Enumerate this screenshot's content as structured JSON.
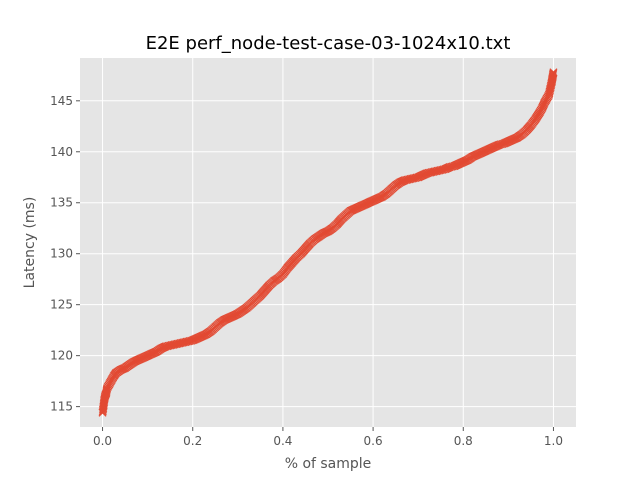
{
  "chart_data": {
    "type": "scatter",
    "title": "E2E perf_node-test-case-03-1024x10.txt",
    "xlabel": "% of sample",
    "ylabel": "Latency (ms)",
    "xlim": [
      -0.05,
      1.05
    ],
    "ylim": [
      113.0,
      149.2
    ],
    "xticks": [
      0.0,
      0.2,
      0.4,
      0.6,
      0.8,
      1.0
    ],
    "xtick_labels": [
      "0.0",
      "0.2",
      "0.4",
      "0.6",
      "0.8",
      "1.0"
    ],
    "yticks": [
      115,
      120,
      125,
      130,
      135,
      140,
      145
    ],
    "ytick_labels": [
      "115",
      "120",
      "125",
      "130",
      "135",
      "140",
      "145"
    ],
    "grid": true,
    "marker": "x",
    "color": "#E24A33",
    "background": "#E5E5E5",
    "series": [
      {
        "x": [
          0.0,
          0.002,
          0.004,
          0.006,
          0.008,
          0.01,
          0.015,
          0.02,
          0.025,
          0.03,
          0.04,
          0.05,
          0.06,
          0.07,
          0.08,
          0.09,
          0.1,
          0.11,
          0.12,
          0.13,
          0.14,
          0.15,
          0.16,
          0.17,
          0.18,
          0.19,
          0.2,
          0.21,
          0.22,
          0.23,
          0.24,
          0.25,
          0.26,
          0.27,
          0.28,
          0.29,
          0.3,
          0.31,
          0.32,
          0.33,
          0.34,
          0.35,
          0.36,
          0.37,
          0.38,
          0.39,
          0.4,
          0.41,
          0.42,
          0.43,
          0.44,
          0.45,
          0.46,
          0.47,
          0.48,
          0.49,
          0.5,
          0.51,
          0.52,
          0.53,
          0.54,
          0.55,
          0.56,
          0.57,
          0.58,
          0.59,
          0.6,
          0.61,
          0.62,
          0.63,
          0.64,
          0.65,
          0.66,
          0.67,
          0.68,
          0.69,
          0.7,
          0.71,
          0.72,
          0.73,
          0.74,
          0.75,
          0.76,
          0.77,
          0.78,
          0.79,
          0.8,
          0.81,
          0.82,
          0.83,
          0.84,
          0.85,
          0.86,
          0.87,
          0.88,
          0.89,
          0.9,
          0.91,
          0.92,
          0.93,
          0.94,
          0.95,
          0.96,
          0.97,
          0.975,
          0.98,
          0.985,
          0.99,
          0.993,
          0.996,
          0.998,
          1.0
        ],
        "y": [
          114.4,
          115.0,
          115.7,
          116.1,
          116.3,
          116.8,
          117.2,
          117.6,
          118.0,
          118.3,
          118.6,
          118.8,
          119.1,
          119.4,
          119.6,
          119.8,
          120.0,
          120.2,
          120.4,
          120.7,
          120.9,
          121.0,
          121.1,
          121.2,
          121.3,
          121.4,
          121.5,
          121.7,
          121.9,
          122.1,
          122.4,
          122.8,
          123.2,
          123.5,
          123.7,
          123.9,
          124.1,
          124.4,
          124.7,
          125.1,
          125.5,
          125.9,
          126.4,
          126.9,
          127.3,
          127.6,
          128.0,
          128.6,
          129.1,
          129.6,
          130.0,
          130.5,
          131.0,
          131.4,
          131.7,
          132.0,
          132.2,
          132.5,
          132.9,
          133.4,
          133.8,
          134.2,
          134.4,
          134.6,
          134.8,
          135.0,
          135.2,
          135.4,
          135.6,
          135.9,
          136.3,
          136.7,
          137.0,
          137.2,
          137.3,
          137.4,
          137.5,
          137.7,
          137.9,
          138.0,
          138.1,
          138.2,
          138.3,
          138.5,
          138.6,
          138.8,
          139.0,
          139.2,
          139.5,
          139.7,
          139.9,
          140.1,
          140.3,
          140.5,
          140.7,
          140.8,
          141.0,
          141.2,
          141.4,
          141.7,
          142.1,
          142.6,
          143.2,
          143.9,
          144.3,
          144.8,
          145.2,
          145.6,
          146.2,
          146.8,
          147.3,
          147.8
        ]
      }
    ]
  }
}
